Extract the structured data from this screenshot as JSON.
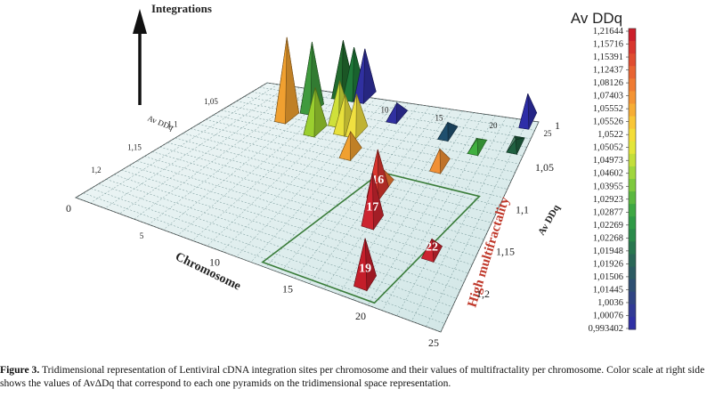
{
  "chart_data": {
    "type": "scatter",
    "subtype": "3d-pyramid",
    "title": "",
    "integrations_label": "Integrations",
    "x_axis": {
      "label": "Chromosome",
      "ticks": [
        "0",
        "5",
        "10",
        "15",
        "20",
        "25"
      ],
      "range": [
        0,
        25
      ]
    },
    "y_axis": {
      "label": "Av DDq",
      "ticks": [
        "1",
        "1,05",
        "1,1",
        "1,15",
        "1,2"
      ],
      "range": [
        1.0,
        1.25
      ]
    },
    "back_axis_labels": {
      "chromosome": [
        "10",
        "15",
        "20",
        "25"
      ],
      "avddq": [
        "1,05",
        "1,1",
        "1,15",
        "1,2"
      ],
      "avddq_label": "Av DDq"
    },
    "colorscale": {
      "title": "Av DDq",
      "values": [
        "1,21644",
        "1,15716",
        "1,15391",
        "1,12437",
        "1,08126",
        "1,07403",
        "1,05552",
        "1,05526",
        "1,0522",
        "1,05052",
        "1,04973",
        "1,04602",
        "1,03955",
        "1,02923",
        "1,02877",
        "1,02269",
        "1,02268",
        "1,01948",
        "1,01926",
        "1,01506",
        "1,01445",
        "1,0036",
        "1,00076",
        "0,993402"
      ],
      "colors": [
        "#cc1f2b",
        "#d8362e",
        "#e04d30",
        "#e86432",
        "#ef7b33",
        "#f49434",
        "#f7ad35",
        "#f9c636",
        "#f4dd38",
        "#e3e63a",
        "#c3df3b",
        "#a0d63d",
        "#7ec93e",
        "#5bb840",
        "#3ea843",
        "#2f9a46",
        "#2a8a4a",
        "#28774f",
        "#2a6757",
        "#2c5b62",
        "#2e4f72",
        "#304483",
        "#313a95",
        "#2f30a4"
      ]
    },
    "region_label": "High multifractality",
    "points": [
      {
        "x": 5,
        "y": 1.05,
        "integrations": 3,
        "avddq": 1.08,
        "color": "#f0a030"
      },
      {
        "x": 6,
        "y": 1.03,
        "integrations": 2.5,
        "avddq": 1.02,
        "color": "#3f9a3e"
      },
      {
        "x": 7,
        "y": 1.0,
        "integrations": 2.0,
        "avddq": 1.01,
        "color": "#226b2e"
      },
      {
        "x": 8,
        "y": 1.0,
        "integrations": 1.8,
        "avddq": 1.02,
        "color": "#1f7a3a"
      },
      {
        "x": 9,
        "y": 1.0,
        "integrations": 1.8,
        "avddq": 1.0,
        "color": "#3030a0"
      },
      {
        "x": 8,
        "y": 1.06,
        "integrations": 1.6,
        "avddq": 1.04,
        "color": "#9bcf2f"
      },
      {
        "x": 9,
        "y": 1.04,
        "integrations": 1.5,
        "avddq": 1.05,
        "color": "#cfe03a"
      },
      {
        "x": 10,
        "y": 1.05,
        "integrations": 1.3,
        "avddq": 1.05,
        "color": "#e8e03c"
      },
      {
        "x": 11,
        "y": 1.05,
        "integrations": 1.4,
        "avddq": 1.05,
        "color": "#f0e040"
      },
      {
        "x": 12,
        "y": 1.08,
        "integrations": 0.8,
        "avddq": 1.07,
        "color": "#f0a030"
      },
      {
        "x": 13,
        "y": 1.02,
        "integrations": 0.5,
        "avddq": 1.0,
        "color": "#3030a0"
      },
      {
        "x": 18,
        "y": 1.03,
        "integrations": 0.4,
        "avddq": 1.0,
        "color": "#1f4f6e"
      },
      {
        "x": 21,
        "y": 1.04,
        "integrations": 0.3,
        "avddq": 1.02,
        "color": "#40b040"
      },
      {
        "x": 24,
        "y": 1.0,
        "integrations": 1.0,
        "avddq": 1.0,
        "color": "#2e2ea8"
      },
      {
        "x": 24,
        "y": 1.03,
        "integrations": 0.2,
        "avddq": 1.01,
        "color": "#1f6040"
      },
      {
        "x": 19,
        "y": 1.07,
        "integrations": 0.6,
        "avddq": 1.08,
        "color": "#f09035"
      },
      {
        "x": 16,
        "y": 1.11,
        "integrations": 0.6,
        "avddq": 1.08,
        "color": "#ef7b33"
      },
      {
        "x": 16,
        "y": 1.12,
        "integrations": 1.6,
        "avddq": 1.15,
        "label": "16",
        "color": "#d8362e"
      },
      {
        "x": 17,
        "y": 1.155,
        "integrations": 1.8,
        "avddq": 1.15,
        "label": "17",
        "color": "#cc2530"
      },
      {
        "x": 22,
        "y": 1.17,
        "integrations": 0.5,
        "avddq": 1.16,
        "label": "22",
        "color": "#cc2530"
      },
      {
        "x": 19,
        "y": 1.225,
        "integrations": 1.6,
        "avddq": 1.22,
        "label": "19",
        "color": "#c41e2a"
      }
    ]
  },
  "caption": {
    "label": "Figure 3.",
    "text": "Tridimensional representation of Lentiviral cDNA integration sites per chromosome and their values of multifractality per chromosome. Color scale at right side shows the values of AvΔDq that correspond to each one pyramids on the tridimensional space representation."
  }
}
